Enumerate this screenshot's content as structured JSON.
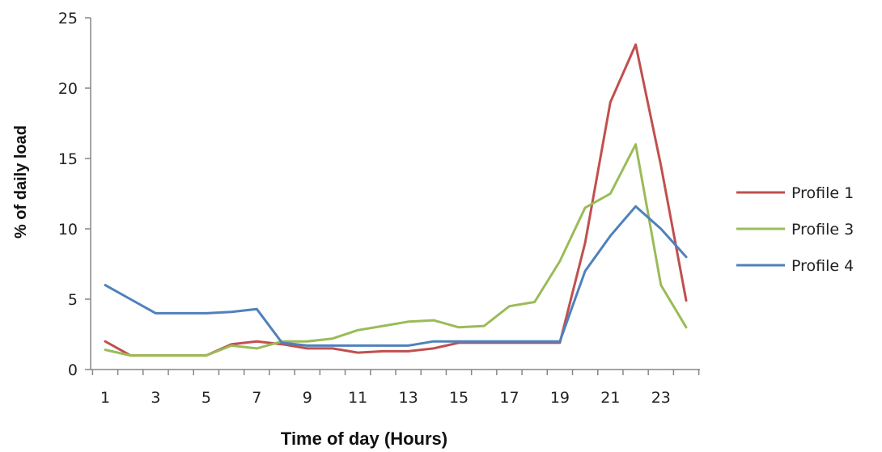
{
  "chart_data": {
    "type": "line",
    "title": "",
    "xlabel": "Time of day (Hours)",
    "ylabel": "% of daily load",
    "x": [
      1,
      2,
      3,
      4,
      5,
      6,
      7,
      8,
      9,
      10,
      11,
      12,
      13,
      14,
      15,
      16,
      17,
      18,
      19,
      20,
      21,
      22,
      23,
      24
    ],
    "x_tick_labels": [
      "1",
      "3",
      "5",
      "7",
      "9",
      "11",
      "13",
      "15",
      "17",
      "19",
      "21",
      "23"
    ],
    "y_tick_labels": [
      "0",
      "5",
      "10",
      "15",
      "20",
      "25"
    ],
    "xlim": [
      1,
      24
    ],
    "ylim": [
      0,
      25
    ],
    "grid": false,
    "legend_position": "right",
    "series": [
      {
        "name": "Profile 1",
        "color": "#c0504d",
        "values": [
          2.0,
          1.0,
          1.0,
          1.0,
          1.0,
          1.8,
          2.0,
          1.8,
          1.5,
          1.5,
          1.2,
          1.3,
          1.3,
          1.5,
          1.9,
          1.9,
          1.9,
          1.9,
          1.9,
          9.0,
          19.0,
          23.1,
          14.5,
          4.9
        ]
      },
      {
        "name": "Profile 3",
        "color": "#9bbb59",
        "values": [
          1.4,
          1.0,
          1.0,
          1.0,
          1.0,
          1.7,
          1.5,
          2.0,
          2.0,
          2.2,
          2.8,
          3.1,
          3.4,
          3.5,
          3.0,
          3.1,
          4.5,
          4.8,
          7.7,
          11.5,
          12.5,
          16.0,
          6.0,
          3.0
        ]
      },
      {
        "name": "Profile 4",
        "color": "#4f81bd",
        "values": [
          6.0,
          5.0,
          4.0,
          4.0,
          4.0,
          4.1,
          4.3,
          1.9,
          1.7,
          1.7,
          1.7,
          1.7,
          1.7,
          2.0,
          2.0,
          2.0,
          2.0,
          2.0,
          2.0,
          7.0,
          9.5,
          11.6,
          10.0,
          8.0
        ]
      }
    ]
  }
}
